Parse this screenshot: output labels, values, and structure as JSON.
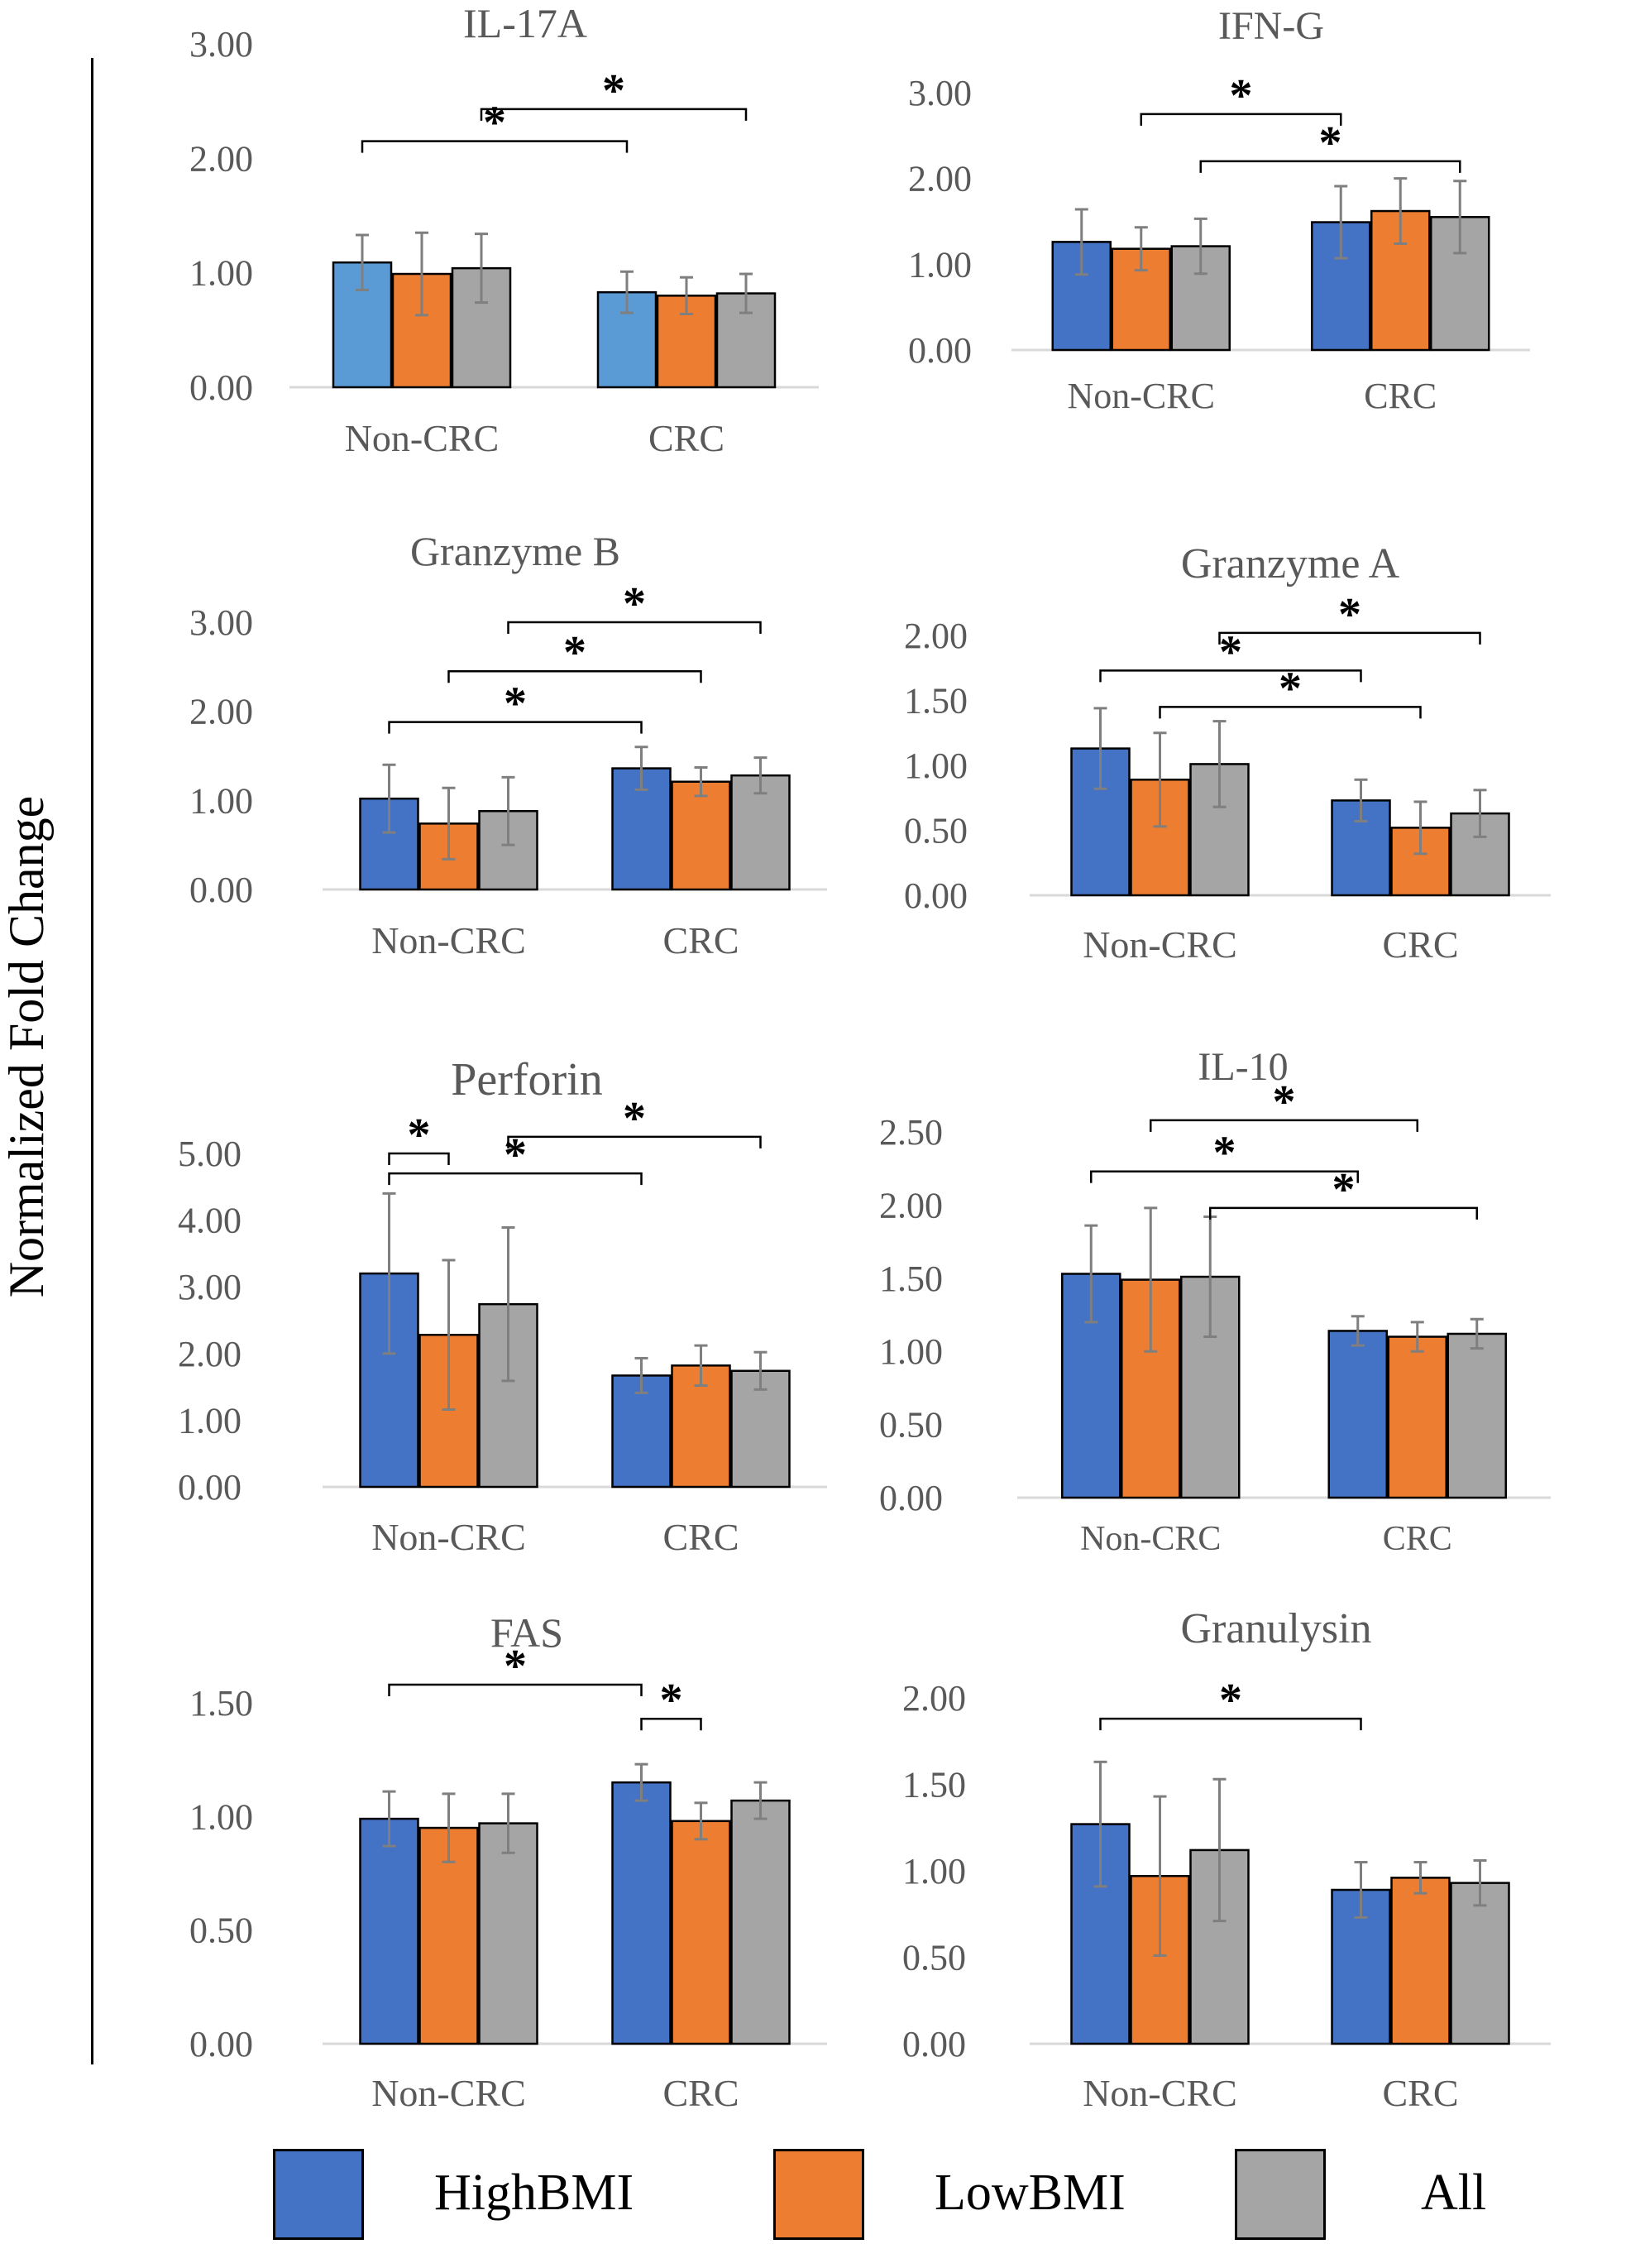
{
  "figure": {
    "y_axis_label": "Normalized Fold Change",
    "legend": [
      {
        "label": "HighBMI",
        "color": "#4472C4"
      },
      {
        "label": "LowBMI",
        "color": "#ED7D31"
      },
      {
        "label": "All",
        "color": "#A5A5A5"
      }
    ]
  },
  "chart_data": [
    {
      "type": "bar",
      "title": "IL-17A",
      "categories": [
        "Non-CRC",
        "CRC"
      ],
      "ylim": [
        0,
        3
      ],
      "yticks": [
        "0.00",
        "1.00",
        "2.00",
        "3.00"
      ],
      "series": [
        {
          "name": "HighBMI",
          "color": "#5B9BD5",
          "values": [
            1.09,
            0.83
          ],
          "errors": [
            0.24,
            0.18
          ]
        },
        {
          "name": "LowBMI",
          "color": "#ED7D31",
          "values": [
            0.99,
            0.8
          ],
          "errors": [
            0.36,
            0.16
          ]
        },
        {
          "name": "All",
          "color": "#A5A5A5",
          "values": [
            1.04,
            0.82
          ],
          "errors": [
            0.3,
            0.17
          ]
        }
      ],
      "significance": [
        {
          "from": [
            0,
            0
          ],
          "to": [
            1,
            0
          ],
          "level": 2.15,
          "label": "*"
        },
        {
          "from": [
            0,
            2
          ],
          "to": [
            1,
            2
          ],
          "level": 2.43,
          "label": "*"
        }
      ]
    },
    {
      "type": "bar",
      "title": "IFN-G",
      "categories": [
        "Non-CRC",
        "CRC"
      ],
      "ylim": [
        0,
        3
      ],
      "yticks": [
        "0.00",
        "1.00",
        "2.00",
        "3.00"
      ],
      "series": [
        {
          "name": "HighBMI",
          "color": "#4472C4",
          "values": [
            1.26,
            1.49
          ],
          "errors": [
            0.38,
            0.42
          ]
        },
        {
          "name": "LowBMI",
          "color": "#ED7D31",
          "values": [
            1.18,
            1.62
          ],
          "errors": [
            0.25,
            0.38
          ]
        },
        {
          "name": "All",
          "color": "#A5A5A5",
          "values": [
            1.21,
            1.55
          ],
          "errors": [
            0.32,
            0.42
          ]
        }
      ],
      "significance": [
        {
          "from": [
            0,
            1
          ],
          "to": [
            1,
            0
          ],
          "level": 2.75,
          "label": "*"
        },
        {
          "from": [
            0,
            2
          ],
          "to": [
            1,
            2
          ],
          "level": 2.2,
          "label": "*"
        }
      ]
    },
    {
      "type": "bar",
      "title": "Granzyme B",
      "categories": [
        "Non-CRC",
        "CRC"
      ],
      "ylim": [
        0,
        3
      ],
      "yticks": [
        "0.00",
        "1.00",
        "2.00",
        "3.00"
      ],
      "series": [
        {
          "name": "HighBMI",
          "color": "#4472C4",
          "values": [
            1.02,
            1.36
          ],
          "errors": [
            0.38,
            0.24
          ]
        },
        {
          "name": "LowBMI",
          "color": "#ED7D31",
          "values": [
            0.74,
            1.21
          ],
          "errors": [
            0.4,
            0.16
          ]
        },
        {
          "name": "All",
          "color": "#A5A5A5",
          "values": [
            0.88,
            1.28
          ],
          "errors": [
            0.38,
            0.2
          ]
        }
      ],
      "significance": [
        {
          "from": [
            0,
            0
          ],
          "to": [
            1,
            0
          ],
          "level": 1.88,
          "label": "*"
        },
        {
          "from": [
            0,
            1
          ],
          "to": [
            1,
            1
          ],
          "level": 2.45,
          "label": "*"
        },
        {
          "from": [
            0,
            2
          ],
          "to": [
            1,
            2
          ],
          "level": 3.0,
          "label": "*"
        }
      ]
    },
    {
      "type": "bar",
      "title": "Granzyme A",
      "categories": [
        "Non-CRC",
        "CRC"
      ],
      "ylim": [
        0,
        2
      ],
      "yticks": [
        "0.00",
        "0.50",
        "1.00",
        "1.50",
        "2.00"
      ],
      "series": [
        {
          "name": "HighBMI",
          "color": "#4472C4",
          "values": [
            1.13,
            0.73
          ],
          "errors": [
            0.31,
            0.16
          ]
        },
        {
          "name": "LowBMI",
          "color": "#ED7D31",
          "values": [
            0.89,
            0.52
          ],
          "errors": [
            0.36,
            0.2
          ]
        },
        {
          "name": "All",
          "color": "#A5A5A5",
          "values": [
            1.01,
            0.63
          ],
          "errors": [
            0.33,
            0.18
          ]
        }
      ],
      "significance": [
        {
          "from": [
            0,
            0
          ],
          "to": [
            1,
            0
          ],
          "level": 1.73,
          "label": "*"
        },
        {
          "from": [
            0,
            1
          ],
          "to": [
            1,
            1
          ],
          "level": 1.45,
          "label": "*"
        },
        {
          "from": [
            0,
            2
          ],
          "to": [
            1,
            2
          ],
          "level": 2.02,
          "label": "*"
        }
      ]
    },
    {
      "type": "bar",
      "title": "Perforin",
      "categories": [
        "Non-CRC",
        "CRC"
      ],
      "ylim": [
        0,
        5
      ],
      "yticks": [
        "0.00",
        "1.00",
        "2.00",
        "3.00",
        "4.00",
        "5.00"
      ],
      "series": [
        {
          "name": "HighBMI",
          "color": "#4472C4",
          "values": [
            3.2,
            1.67
          ],
          "errors": [
            1.2,
            0.26
          ]
        },
        {
          "name": "LowBMI",
          "color": "#ED7D31",
          "values": [
            2.28,
            1.82
          ],
          "errors": [
            1.12,
            0.3
          ]
        },
        {
          "name": "All",
          "color": "#A5A5A5",
          "values": [
            2.74,
            1.74
          ],
          "errors": [
            1.15,
            0.28
          ]
        }
      ],
      "significance": [
        {
          "from": [
            0,
            0
          ],
          "to": [
            0,
            1
          ],
          "level": 5.0,
          "label": "*"
        },
        {
          "from": [
            0,
            0
          ],
          "to": [
            1,
            0
          ],
          "level": 4.7,
          "label": "*"
        },
        {
          "from": [
            0,
            2
          ],
          "to": [
            1,
            2
          ],
          "level": 5.25,
          "label": "*"
        }
      ]
    },
    {
      "type": "bar",
      "title": "IL-10",
      "categories": [
        "Non-CRC",
        "CRC"
      ],
      "ylim": [
        0,
        2.5
      ],
      "yticks": [
        "0.00",
        "0.50",
        "1.00",
        "1.50",
        "2.00",
        "2.50"
      ],
      "series": [
        {
          "name": "HighBMI",
          "color": "#4472C4",
          "values": [
            1.53,
            1.14
          ],
          "errors": [
            0.33,
            0.1
          ]
        },
        {
          "name": "LowBMI",
          "color": "#ED7D31",
          "values": [
            1.49,
            1.1
          ],
          "errors": [
            0.49,
            0.1
          ]
        },
        {
          "name": "All",
          "color": "#A5A5A5",
          "values": [
            1.51,
            1.12
          ],
          "errors": [
            0.41,
            0.1
          ]
        }
      ],
      "significance": [
        {
          "from": [
            0,
            0
          ],
          "to": [
            1,
            0
          ],
          "level": 2.23,
          "label": "*"
        },
        {
          "from": [
            0,
            1
          ],
          "to": [
            1,
            1
          ],
          "level": 2.58,
          "label": "*"
        },
        {
          "from": [
            0,
            2
          ],
          "to": [
            1,
            2
          ],
          "level": 1.98,
          "label": "*"
        }
      ]
    },
    {
      "type": "bar",
      "title": "FAS",
      "categories": [
        "Non-CRC",
        "CRC"
      ],
      "ylim": [
        0,
        1.5
      ],
      "yticks": [
        "0.00",
        "0.50",
        "1.00",
        "1.50"
      ],
      "series": [
        {
          "name": "HighBMI",
          "color": "#4472C4",
          "values": [
            0.99,
            1.15
          ],
          "errors": [
            0.12,
            0.08
          ]
        },
        {
          "name": "LowBMI",
          "color": "#ED7D31",
          "values": [
            0.95,
            0.98
          ],
          "errors": [
            0.15,
            0.08
          ]
        },
        {
          "name": "All",
          "color": "#A5A5A5",
          "values": [
            0.97,
            1.07
          ],
          "errors": [
            0.13,
            0.08
          ]
        }
      ],
      "significance": [
        {
          "from": [
            0,
            0
          ],
          "to": [
            1,
            0
          ],
          "level": 1.58,
          "label": "*"
        },
        {
          "from": [
            1,
            0
          ],
          "to": [
            1,
            1
          ],
          "level": 1.43,
          "label": "*"
        }
      ]
    },
    {
      "type": "bar",
      "title": "Granulysin",
      "categories": [
        "Non-CRC",
        "CRC"
      ],
      "ylim": [
        0,
        2
      ],
      "yticks": [
        "0.00",
        "0.50",
        "1.00",
        "1.50",
        "2.00"
      ],
      "series": [
        {
          "name": "HighBMI",
          "color": "#4472C4",
          "values": [
            1.27,
            0.89
          ],
          "errors": [
            0.36,
            0.16
          ]
        },
        {
          "name": "LowBMI",
          "color": "#ED7D31",
          "values": [
            0.97,
            0.96
          ],
          "errors": [
            0.46,
            0.09
          ]
        },
        {
          "name": "All",
          "color": "#A5A5A5",
          "values": [
            1.12,
            0.93
          ],
          "errors": [
            0.41,
            0.13
          ]
        }
      ],
      "significance": [
        {
          "from": [
            0,
            0
          ],
          "to": [
            1,
            0
          ],
          "level": 1.88,
          "label": "*"
        }
      ]
    }
  ]
}
